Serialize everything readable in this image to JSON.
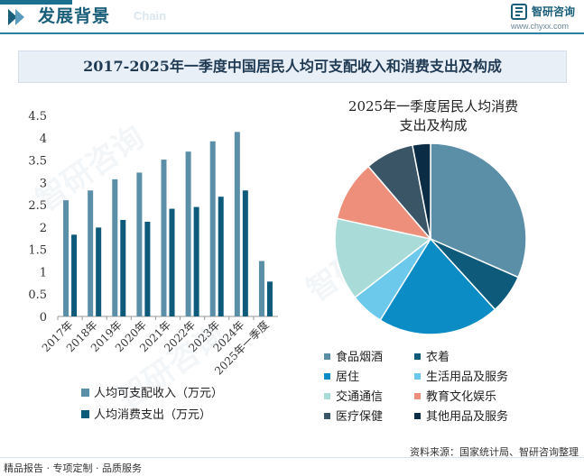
{
  "header": {
    "section_title": "发展背景",
    "section_sub": "Chain",
    "brand_name": "智研咨询",
    "brand_url": "www.chyxx.com"
  },
  "footer": {
    "left": "精品报告 · 专项定制 · 品质服务",
    "source": "资料来源：国家统计局、智研咨询整理"
  },
  "colors": {
    "income": "#5b8fa8",
    "consumption": "#0d5a7a",
    "accent": "#1a5f7a"
  },
  "chart_data": [
    {
      "type": "bar",
      "title": "2017-2025年一季度中国居民人均可支配收入和消费支出及构成",
      "categories": [
        "2017年",
        "2018年",
        "2019年",
        "2020年",
        "2021年",
        "2022年",
        "2023年",
        "2024年",
        "2025年一季度"
      ],
      "series": [
        {
          "name": "人均可支配收入（万元）",
          "color": "#5b8fa8",
          "values": [
            2.6,
            2.82,
            3.07,
            3.22,
            3.51,
            3.69,
            3.92,
            4.13,
            1.24
          ]
        },
        {
          "name": "人均消费支出（万元）",
          "color": "#0d5a7a",
          "values": [
            1.83,
            1.99,
            2.16,
            2.12,
            2.41,
            2.45,
            2.68,
            2.82,
            0.78
          ]
        }
      ],
      "ylim": [
        0,
        4.5
      ],
      "yticks": [
        "0",
        "0.5",
        "1",
        "1.5",
        "2",
        "2.5",
        "3",
        "3.5",
        "4",
        "4.5"
      ],
      "grid": false,
      "legend": "bottom-left"
    },
    {
      "type": "pie",
      "title_lines": [
        "2025年一季度居民人均消费",
        "支出及构成"
      ],
      "slices": [
        {
          "label": "食品烟酒",
          "value": 32.2,
          "color": "#5b8fa8"
        },
        {
          "label": "衣着",
          "value": 6.8,
          "color": "#0d5a7a"
        },
        {
          "label": "居住",
          "value": 21.0,
          "color": "#0b8cc4"
        },
        {
          "label": "生活用品及服务",
          "value": 5.8,
          "color": "#6cc9ec"
        },
        {
          "label": "交通通信",
          "value": 14.2,
          "color": "#a9dcd9"
        },
        {
          "label": "教育文化娱乐",
          "value": 10.5,
          "color": "#ed8f7a"
        },
        {
          "label": "医疗保健",
          "value": 8.4,
          "color": "#3a5565"
        },
        {
          "label": "其他用品及服务",
          "value": 3.1,
          "color": "#0a2d45"
        }
      ],
      "legend": "bottom"
    }
  ]
}
